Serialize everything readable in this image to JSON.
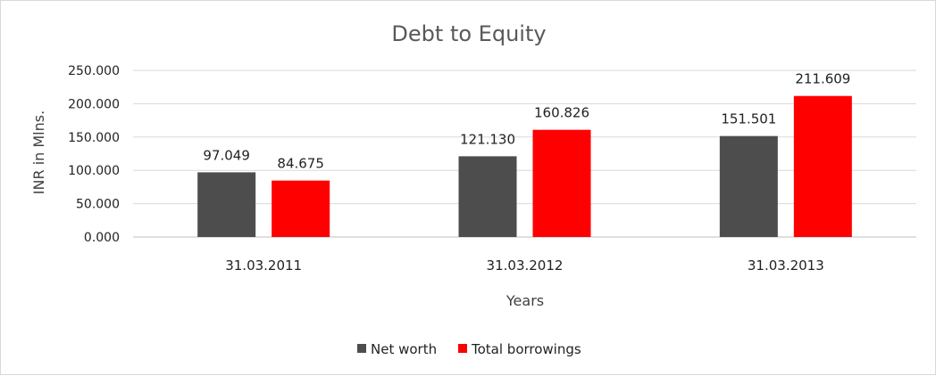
{
  "chart_data": {
    "type": "bar",
    "title": "Debt to Equity",
    "xlabel": "Years",
    "ylabel": "INR in Mlns.",
    "categories": [
      "31.03.2011",
      "31.03.2012",
      "31.03.2013"
    ],
    "series": [
      {
        "name": "Net worth",
        "values": [
          97.049,
          121.13,
          151.501
        ],
        "labels": [
          "97.049",
          "121.130",
          "151.501"
        ],
        "color": "#4d4d4d"
      },
      {
        "name": "Total borrowings",
        "values": [
          84.675,
          160.826,
          211.609
        ],
        "labels": [
          "84.675",
          "160.826",
          "211.609"
        ],
        "color": "#ff0000"
      }
    ],
    "ylim": [
      0,
      250
    ],
    "yticks": [
      0,
      50,
      100,
      150,
      200,
      250
    ],
    "ytick_labels": [
      "0.000",
      "50.000",
      "100.000",
      "150.000",
      "200.000",
      "250.000"
    ],
    "grid": true,
    "legend_position": "bottom"
  }
}
